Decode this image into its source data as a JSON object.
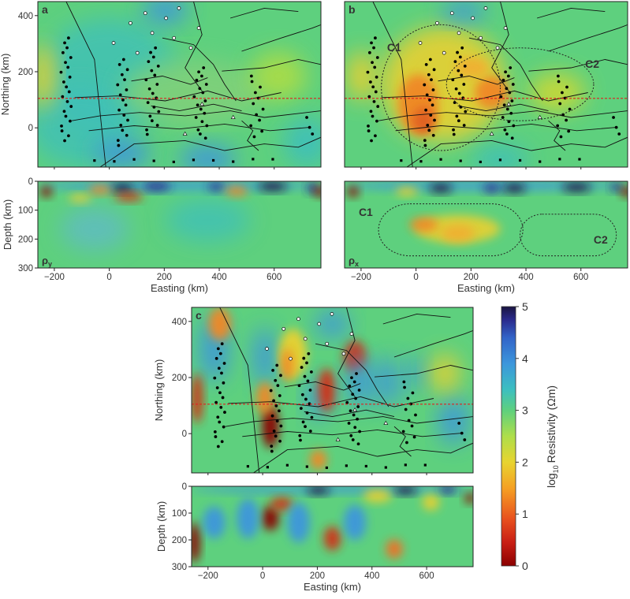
{
  "chart_data": [
    {
      "type": "heatmap",
      "panel_letter": "a",
      "view": "map",
      "xlabel": "",
      "ylabel": "Northing (km)",
      "xlim": [
        -260,
        770
      ],
      "ylim": [
        -140,
        450
      ],
      "yticks": [
        "0",
        "200",
        "400"
      ],
      "profile_northing": 105
    },
    {
      "type": "heatmap",
      "panel_letter": "a",
      "view": "section",
      "component_label": "ρy",
      "xlabel": "Easting (km)",
      "ylabel": "Depth (km)",
      "xlim": [
        -260,
        770
      ],
      "ylim": [
        300,
        0
      ],
      "xticks": [
        "-200",
        "0",
        "200",
        "400",
        "600"
      ],
      "yticks": [
        "0",
        "100",
        "200",
        "300"
      ]
    },
    {
      "type": "heatmap",
      "panel_letter": "b",
      "view": "map",
      "xlabel": "",
      "ylabel": "",
      "xlim": [
        -260,
        770
      ],
      "ylim": [
        -140,
        450
      ],
      "annotations": [
        "C1",
        "C2"
      ],
      "profile_northing": 105
    },
    {
      "type": "heatmap",
      "panel_letter": "b",
      "view": "section",
      "component_label": "ρx",
      "xlabel": "Easting (km)",
      "ylabel": "",
      "xlim": [
        -260,
        770
      ],
      "ylim": [
        300,
        0
      ],
      "xticks": [
        "-200",
        "0",
        "200",
        "400",
        "600"
      ],
      "annotations": [
        "C1",
        "C2"
      ]
    },
    {
      "type": "heatmap",
      "panel_letter": "c",
      "view": "map",
      "xlabel": "",
      "ylabel": "Northing (km)",
      "xlim": [
        -260,
        770
      ],
      "ylim": [
        -140,
        450
      ],
      "yticks": [
        "0",
        "200",
        "400"
      ],
      "profile_northing": 105
    },
    {
      "type": "heatmap",
      "panel_letter": "c",
      "view": "section",
      "xlabel": "Easting (km)",
      "ylabel": "Depth (km)",
      "xlim": [
        -260,
        770
      ],
      "ylim": [
        300,
        0
      ],
      "xticks": [
        "-200",
        "0",
        "200",
        "400",
        "600"
      ],
      "yticks": [
        "0",
        "100",
        "200",
        "300"
      ]
    }
  ],
  "colorbar": {
    "label_prefix": "log",
    "label_sub": "10",
    "label_suffix": "Resistivity (Ωm)",
    "range": [
      0,
      5
    ],
    "ticks": [
      "0",
      "1",
      "2",
      "3",
      "4",
      "5"
    ],
    "colormap": [
      "#8b0000",
      "#c81e14",
      "#e8501e",
      "#f5a023",
      "#e8d430",
      "#aede4a",
      "#5ed07e",
      "#3cbfc0",
      "#3c96dc",
      "#3264c8",
      "#2a2a8c",
      "#1a1440"
    ]
  }
}
